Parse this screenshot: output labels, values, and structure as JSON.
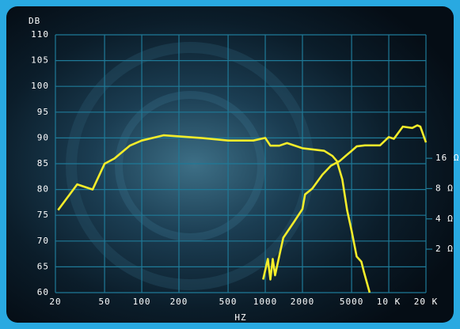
{
  "chart_data": {
    "type": "line",
    "ylabel": "DB",
    "xlabel": "HZ",
    "xscale": "log",
    "y2scale": "log",
    "grid": true,
    "xlim": [
      20,
      20000
    ],
    "xticks": [
      20,
      50,
      100,
      200,
      500,
      1000,
      2000,
      5000,
      {
        "value": 10000,
        "label": "10 K"
      },
      {
        "value": 20000,
        "label": "20 K"
      }
    ],
    "ylim": [
      60,
      110
    ],
    "yticks": [
      60,
      65,
      70,
      75,
      80,
      85,
      90,
      95,
      100,
      105,
      110
    ],
    "y2lim": [
      0.74,
      270
    ],
    "y2ticks": [
      {
        "value": 2,
        "label": "2 Ω"
      },
      {
        "value": 4,
        "label": "4 Ω"
      },
      {
        "value": 8,
        "label": "8 Ω"
      },
      {
        "value": 16,
        "label": "16 Ω"
      }
    ],
    "series": [
      {
        "color": "#f4ec2a",
        "x": [
          21,
          30,
          40,
          50,
          60,
          80,
          100,
          150,
          200,
          300,
          500,
          800,
          1000,
          1100,
          1300,
          1500,
          2000,
          3000,
          3500,
          3800,
          4200,
          4600,
          5000,
          5500,
          6000,
          6300,
          7000
        ],
        "values": [
          76,
          81,
          80,
          85,
          86,
          88.5,
          89.5,
          90.5,
          90.3,
          90,
          89.5,
          89.5,
          90,
          88.5,
          88.5,
          89,
          88,
          87.5,
          86.5,
          85.5,
          82,
          76,
          72,
          67,
          66,
          64,
          60
        ]
      },
      {
        "color": "#f4ec2a",
        "axis": "y2",
        "x": [
          960,
          1050,
          1100,
          1150,
          1200,
          1400,
          1700,
          2000,
          2100,
          2400,
          2900,
          3400,
          4000,
          4500,
          5000,
          5500,
          6400,
          8500,
          10000,
          11000,
          13000,
          15500,
          17000,
          18000,
          20000
        ],
        "values": [
          1.0,
          1.6,
          1.0,
          1.6,
          1.1,
          2.6,
          3.7,
          5,
          7,
          8,
          11,
          13.5,
          15,
          17,
          19,
          21,
          21.5,
          21.5,
          26,
          25,
          33,
          32,
          34,
          33,
          23
        ]
      }
    ]
  }
}
